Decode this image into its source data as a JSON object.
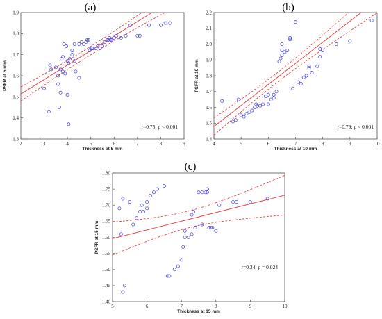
{
  "chart_data": [
    {
      "type": "scatter",
      "panel_label": "(a)",
      "xlabel": "Thickness at 5 mm",
      "ylabel": "PSFR at 5 mm",
      "xlim": [
        2,
        9
      ],
      "ylim": [
        1.3,
        1.9
      ],
      "xticks": [
        "2",
        "3",
        "4",
        "5",
        "6",
        "7",
        "8",
        "9"
      ],
      "yticks": [
        "1.3",
        "1.4",
        "1.5",
        "1.6",
        "1.7",
        "1.8",
        "1.9"
      ],
      "annotation": "r=0.75; p < 0.001",
      "grid": false,
      "marker_color": "#5050e6",
      "fit_color": "#e64646",
      "fit": {
        "slope": 0.0688,
        "intercept": 1.3755
      },
      "ci_band": {
        "xbar": 4.8,
        "half_width_at_mean": 0.02,
        "spread": 0.0095
      },
      "x": [
        3.2,
        3.3,
        3.25,
        3.0,
        3.5,
        3.6,
        3.65,
        3.7,
        3.75,
        3.8,
        3.85,
        3.9,
        4.0,
        4.05,
        4.1,
        4.2,
        4.3,
        4.35,
        4.5,
        4.6,
        4.7,
        4.8,
        4.85,
        4.9,
        4.95,
        5.0,
        5.05,
        5.1,
        5.2,
        5.3,
        5.4,
        5.5,
        5.6,
        5.7,
        5.75,
        5.8,
        5.85,
        5.9,
        6.0,
        6.1,
        6.3,
        6.5,
        6.7,
        7.0,
        7.1,
        7.5,
        8.0,
        8.2,
        8.4,
        3.6,
        3.7,
        3.8,
        4.0,
        4.05,
        3.95,
        4.3,
        4.5,
        4.2
      ],
      "y": [
        1.43,
        1.63,
        1.65,
        1.54,
        1.64,
        1.6,
        1.45,
        1.52,
        1.68,
        1.69,
        1.75,
        1.61,
        1.51,
        1.37,
        1.68,
        1.72,
        1.75,
        1.62,
        1.75,
        1.76,
        1.75,
        1.76,
        1.77,
        1.77,
        1.72,
        1.73,
        1.73,
        1.73,
        1.73,
        1.74,
        1.73,
        1.74,
        1.76,
        1.77,
        1.77,
        1.78,
        1.77,
        1.77,
        1.78,
        1.79,
        1.78,
        1.79,
        1.84,
        1.79,
        1.79,
        1.84,
        1.84,
        1.85,
        1.85,
        1.56,
        1.63,
        1.62,
        1.67,
        1.66,
        1.74,
        1.67,
        1.59,
        1.7
      ]
    },
    {
      "type": "scatter",
      "panel_label": "(b)",
      "xlabel": "Thickness at 10 mm",
      "ylabel": "PSFR at 10 mm",
      "xlim": [
        4,
        10
      ],
      "ylim": [
        1.4,
        2.2
      ],
      "xticks": [
        "4",
        "5",
        "6",
        "7",
        "8",
        "9",
        "10"
      ],
      "yticks": [
        "1.4",
        "1.5",
        "1.6",
        "1.7",
        "1.8",
        "1.9",
        "2.0",
        "2.1",
        "2.2"
      ],
      "annotation": "r=0.79; p < 0.001",
      "grid": false,
      "marker_color": "#5050e6",
      "fit_color": "#e64646",
      "fit": {
        "slope": 0.1333,
        "intercept": 0.9454
      },
      "ci_band": {
        "xbar": 6.3,
        "half_width_at_mean": 0.03,
        "spread": 0.02
      },
      "x": [
        4.3,
        4.7,
        4.8,
        4.9,
        5.0,
        5.1,
        5.2,
        5.3,
        5.4,
        5.5,
        5.55,
        5.6,
        5.7,
        5.8,
        5.9,
        6.0,
        6.0,
        6.1,
        6.2,
        6.3,
        6.4,
        6.45,
        6.5,
        6.5,
        6.5,
        6.6,
        6.7,
        6.8,
        6.8,
        7.0,
        7.2,
        7.3,
        7.4,
        7.5,
        7.6,
        7.8,
        7.9,
        8.0,
        8.5,
        9.0,
        9.8,
        6.9,
        7.1,
        7.5,
        7.9,
        6.2
      ],
      "y": [
        1.64,
        1.51,
        1.52,
        1.65,
        1.55,
        1.54,
        1.56,
        1.57,
        1.58,
        1.6,
        1.62,
        1.61,
        1.61,
        1.62,
        1.67,
        1.62,
        1.68,
        1.65,
        1.68,
        1.7,
        1.89,
        1.91,
        1.93,
        1.96,
        2.0,
        1.95,
        1.96,
        2.03,
        2.04,
        2.14,
        1.75,
        1.79,
        1.8,
        1.85,
        1.82,
        1.86,
        1.92,
        1.96,
        2.0,
        2.02,
        2.15,
        1.72,
        1.76,
        1.86,
        1.97,
        1.66
      ]
    },
    {
      "type": "scatter",
      "panel_label": "(c)",
      "xlabel": "Thickness at 15 mm",
      "ylabel": "PSFR at 15 mm",
      "xlim": [
        5,
        10
      ],
      "ylim": [
        1.4,
        1.8
      ],
      "xticks": [
        "5",
        "6",
        "7",
        "8",
        "9",
        "10"
      ],
      "yticks": [
        "1.40",
        "1.45",
        "1.50",
        "1.55",
        "1.60",
        "1.65",
        "1.70",
        "1.75",
        "1.80"
      ],
      "annotation": "r=0.34; p = 0.024",
      "grid": false,
      "marker_color": "#5050e6",
      "fit_color": "#e64646",
      "fit": {
        "slope": 0.027,
        "intercept": 1.4611
      },
      "ci_band": {
        "xbar": 7.2,
        "half_width_at_mean": 0.026,
        "spread": 0.02
      },
      "x": [
        5.2,
        5.3,
        5.3,
        5.35,
        5.5,
        5.6,
        5.7,
        5.8,
        5.85,
        5.9,
        6.0,
        6.1,
        6.2,
        6.3,
        6.5,
        6.6,
        6.65,
        6.8,
        6.9,
        7.0,
        7.05,
        7.1,
        7.2,
        7.3,
        7.35,
        7.4,
        7.5,
        7.6,
        7.7,
        7.75,
        7.8,
        7.85,
        7.9,
        8.0,
        8.1,
        8.5,
        8.6,
        9.0,
        9.5,
        5.25,
        7.1,
        7.3,
        7.75,
        6.0,
        7.6
      ],
      "y": [
        1.69,
        1.72,
        1.43,
        1.45,
        1.71,
        1.64,
        1.66,
        1.68,
        1.7,
        1.68,
        1.71,
        1.73,
        1.74,
        1.75,
        1.76,
        1.48,
        1.48,
        1.5,
        1.51,
        1.53,
        1.57,
        1.62,
        1.6,
        1.67,
        1.68,
        1.63,
        1.74,
        1.74,
        1.74,
        1.75,
        1.63,
        1.63,
        1.63,
        1.62,
        1.7,
        1.71,
        1.71,
        1.71,
        1.72,
        1.61,
        1.6,
        1.61,
        1.74,
        1.69,
        1.64
      ]
    }
  ]
}
